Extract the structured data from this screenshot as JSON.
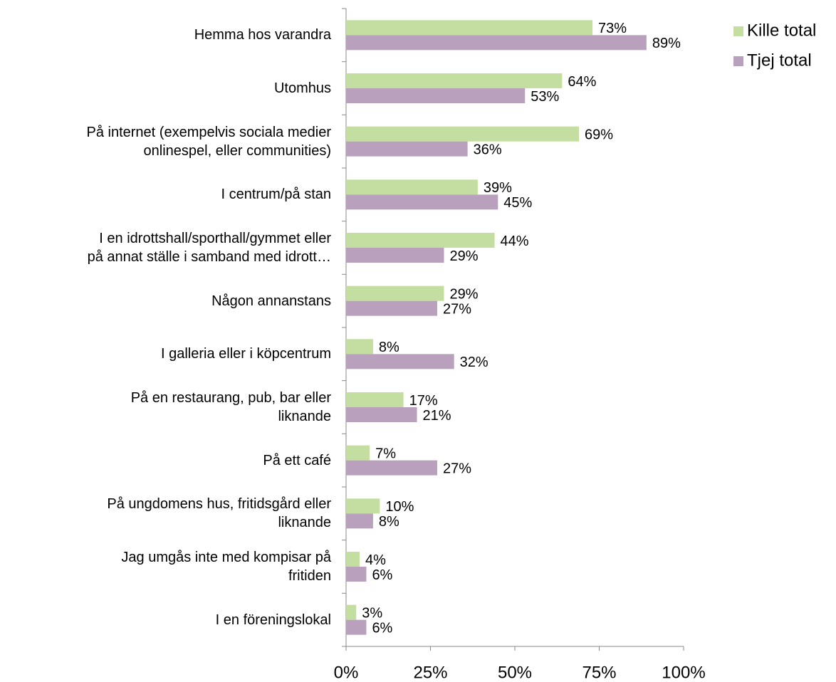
{
  "chart_data": {
    "type": "hbar",
    "categories": [
      "Hemma hos varandra",
      "Utomhus",
      "På internet (exempelvis sociala medier\nonlinespel, eller communities)",
      "I centrum/på stan",
      "I en idrottshall/sporthall/gymmet eller\npå annat ställe i samband med idrott…",
      "Någon annanstans",
      "I galleria eller i köpcentrum",
      "På en restaurang, pub, bar eller\nliknande",
      "På ett café",
      "På ungdomens hus, fritidsgård eller\nliknande",
      "Jag umgås inte med kompisar på\nfritiden",
      "I en föreningslokal"
    ],
    "series": [
      {
        "name": "Kille total",
        "color": "#c3dea0",
        "values": [
          73,
          64,
          69,
          39,
          44,
          29,
          8,
          17,
          7,
          10,
          4,
          3
        ],
        "value_labels": [
          "73%",
          "64%",
          "69%",
          "39%",
          "44%",
          "29%",
          "8%",
          "17%",
          "7%",
          "10%",
          "4%",
          "3%"
        ]
      },
      {
        "name": "Tjej total",
        "color": "#b9a1bd",
        "values": [
          89,
          53,
          36,
          45,
          29,
          27,
          32,
          21,
          27,
          8,
          6,
          6
        ],
        "value_labels": [
          "89%",
          "53%",
          "36%",
          "45%",
          "29%",
          "27%",
          "32%",
          "21%",
          "27%",
          "8%",
          "6%",
          "6%"
        ]
      }
    ],
    "xlim": [
      0,
      100
    ],
    "xticks": [
      {
        "value": 0,
        "label": "0%"
      },
      {
        "value": 25,
        "label": "25%"
      },
      {
        "value": 50,
        "label": "50%"
      },
      {
        "value": 75,
        "label": "75%"
      },
      {
        "value": 100,
        "label": "100%"
      }
    ],
    "legend": "top-right"
  }
}
